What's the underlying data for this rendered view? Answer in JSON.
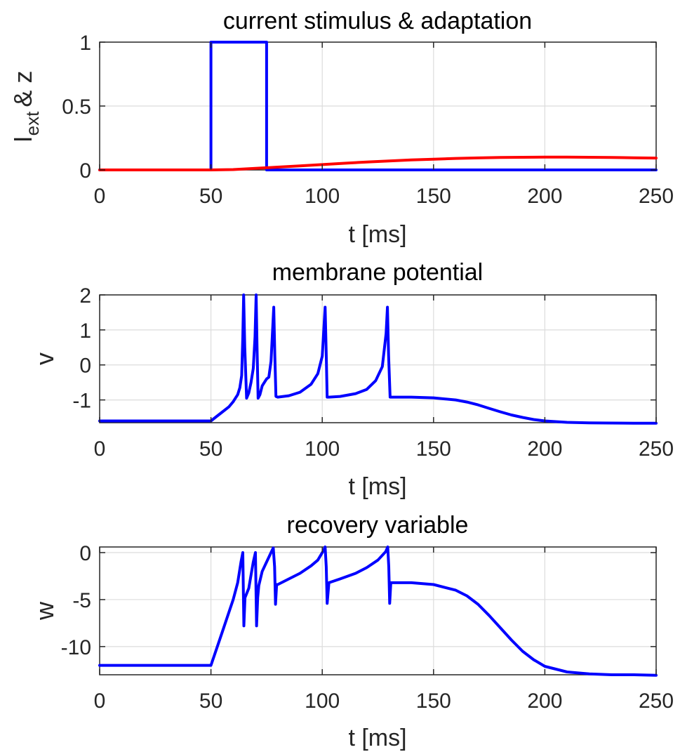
{
  "chart_data": [
    {
      "type": "line",
      "title": "current stimulus & adaptation",
      "xlabel": "t  [ms]",
      "ylabel": {
        "main": "I",
        "sub": "ext",
        "rest": "& z"
      },
      "xlim": [
        0,
        250
      ],
      "ylim": [
        0,
        1
      ],
      "xticks": [
        "0",
        "50",
        "100",
        "150",
        "200",
        "250"
      ],
      "yticks": [
        "0",
        "0.5",
        "1"
      ],
      "grid": true,
      "series": [
        {
          "color": "#0000ff",
          "x": [
            0,
            50,
            50,
            75,
            75,
            250
          ],
          "y": [
            0,
            0,
            1,
            1,
            0,
            0
          ]
        },
        {
          "color": "#ff0000",
          "x": [
            0,
            50,
            60,
            70,
            80,
            90,
            100,
            110,
            120,
            130,
            140,
            150,
            160,
            170,
            180,
            190,
            200,
            210,
            220,
            230,
            240,
            250
          ],
          "y": [
            0,
            0,
            0.003,
            0.012,
            0.022,
            0.032,
            0.042,
            0.052,
            0.062,
            0.07,
            0.078,
            0.084,
            0.09,
            0.094,
            0.097,
            0.099,
            0.1,
            0.1,
            0.099,
            0.097,
            0.095,
            0.093
          ]
        }
      ]
    },
    {
      "type": "line",
      "title": "membrane potential",
      "xlabel": "t  [ms]",
      "ylabel": {
        "main": "v"
      },
      "xlim": [
        0,
        250
      ],
      "ylim": [
        -1.65,
        2
      ],
      "xticks": [
        "0",
        "50",
        "100",
        "150",
        "200",
        "250"
      ],
      "yticks": [
        "-1",
        "0",
        "1",
        "2"
      ],
      "grid": true,
      "series": [
        {
          "color": "#0000ff",
          "x": [
            0,
            50,
            52,
            55,
            58,
            60,
            62,
            63,
            63.8,
            64.3,
            64.7,
            65.2,
            66,
            67,
            68,
            69,
            69.8,
            70.3,
            70.7,
            71.2,
            72,
            73,
            74,
            75,
            76,
            77,
            78.2,
            78.7,
            79.2,
            80,
            85,
            90,
            95,
            98,
            100,
            101.3,
            101.8,
            102.2,
            103,
            108,
            115,
            120,
            124,
            127,
            128.7,
            129.3,
            129.8,
            130.5,
            131,
            135,
            140,
            150,
            160,
            165,
            170,
            175,
            180,
            185,
            190,
            195,
            200,
            210,
            220,
            230,
            240,
            250
          ],
          "y": [
            -1.6,
            -1.6,
            -1.5,
            -1.35,
            -1.2,
            -1.05,
            -0.85,
            -0.65,
            -0.3,
            0.8,
            2,
            0.5,
            -0.95,
            -0.8,
            -0.5,
            -0.1,
            0.8,
            2,
            0.5,
            -0.95,
            -0.85,
            -0.6,
            -0.5,
            -0.4,
            -0.35,
            0.1,
            1.65,
            0.3,
            -0.9,
            -0.92,
            -0.88,
            -0.78,
            -0.55,
            -0.25,
            0.25,
            1.65,
            0.3,
            -0.92,
            -0.92,
            -0.9,
            -0.82,
            -0.7,
            -0.45,
            -0.05,
            0.9,
            1.65,
            0.3,
            -0.92,
            -0.92,
            -0.92,
            -0.92,
            -0.94,
            -1.0,
            -1.06,
            -1.14,
            -1.24,
            -1.34,
            -1.43,
            -1.5,
            -1.56,
            -1.6,
            -1.64,
            -1.655,
            -1.66,
            -1.665,
            -1.665
          ]
        }
      ]
    },
    {
      "type": "line",
      "title": "recovery variable",
      "xlabel": "t  [ms]",
      "ylabel": {
        "main": "w"
      },
      "xlim": [
        0,
        250
      ],
      "ylim": [
        -13,
        0.6
      ],
      "xticks": [
        "0",
        "50",
        "100",
        "150",
        "200",
        "250"
      ],
      "yticks": [
        "-10",
        "-5",
        "0"
      ],
      "grid": true,
      "series": [
        {
          "color": "#0000ff",
          "x": [
            0,
            50,
            55,
            60,
            62,
            63.5,
            64.3,
            64.8,
            65.3,
            67,
            69,
            70,
            70.5,
            71,
            71.5,
            73,
            75,
            77,
            78,
            78.6,
            79,
            79.5,
            80,
            85,
            90,
            95,
            98,
            100.5,
            101.3,
            101.8,
            102.2,
            103,
            108,
            115,
            120,
            125,
            128.5,
            129.4,
            129.9,
            130.3,
            130.8,
            135,
            140,
            150,
            160,
            165,
            170,
            175,
            180,
            185,
            190,
            195,
            200,
            210,
            220,
            230,
            240,
            250
          ],
          "y": [
            -12,
            -12,
            -8.5,
            -5,
            -3.2,
            -1,
            0,
            -7.8,
            -4.8,
            -3.8,
            -1,
            0,
            -7.8,
            -4.8,
            -3.5,
            -2,
            -1,
            0,
            0.5,
            -1.5,
            -5.5,
            -3.4,
            -3.4,
            -2.8,
            -2.2,
            -1.4,
            -0.8,
            0.2,
            0.6,
            -1.5,
            -5.4,
            -3.2,
            -2.8,
            -2.2,
            -1.6,
            -0.8,
            0.1,
            0.6,
            -1.5,
            -5.4,
            -3.2,
            -3.2,
            -3.2,
            -3.4,
            -4.0,
            -4.6,
            -5.5,
            -6.7,
            -8.0,
            -9.3,
            -10.5,
            -11.4,
            -12.1,
            -12.7,
            -12.9,
            -13.0,
            -13.0,
            -13.05
          ]
        }
      ]
    }
  ]
}
